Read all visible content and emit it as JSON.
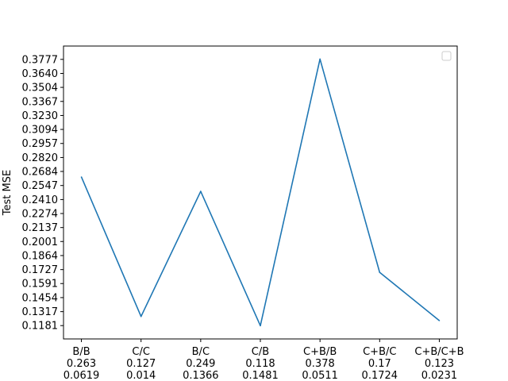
{
  "chart_data": {
    "type": "line",
    "title": "",
    "xlabel": "",
    "ylabel": "Test MSE",
    "categories": [
      [
        "B/B",
        "0.263",
        "0.0619"
      ],
      [
        "C/C",
        "0.127",
        "0.014"
      ],
      [
        "B/C",
        "0.249",
        "0.1366"
      ],
      [
        "C/B",
        "0.118",
        "0.1481"
      ],
      [
        "C+B/B",
        "0.378",
        "0.0511"
      ],
      [
        "C+B/C",
        "0.17",
        "0.1724"
      ],
      [
        "C+B/C+B",
        "0.123",
        "0.0231"
      ]
    ],
    "series": [
      {
        "values": [
          0.263,
          0.127,
          0.249,
          0.118,
          0.378,
          0.17,
          0.123
        ]
      }
    ],
    "yticks": [
      "0.1181",
      "0.1317",
      "0.1454",
      "0.1591",
      "0.1727",
      "0.1864",
      "0.2001",
      "0.2137",
      "0.2274",
      "0.2410",
      "0.2547",
      "0.2684",
      "0.2820",
      "0.2957",
      "0.3094",
      "0.3230",
      "0.3367",
      "0.3504",
      "0.3640",
      "0.3777"
    ],
    "ylim": [
      0.1051,
      0.3907
    ],
    "line_color": "#1f77b4",
    "legend": {
      "placement": "top-right",
      "entries": []
    },
    "grid": false
  }
}
